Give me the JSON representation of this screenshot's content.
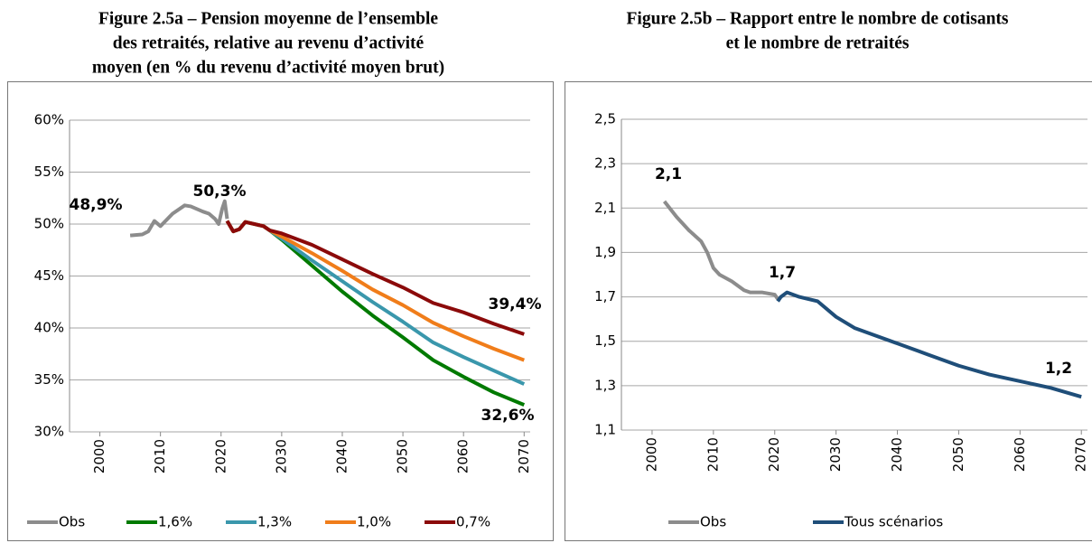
{
  "chart_data": [
    {
      "type": "line",
      "title": [
        "Figure 2.5a – Pension moyenne de l’ensemble",
        "des retraités, relative au revenu d’activité",
        "moyen (en % du revenu d’activité moyen brut)"
      ],
      "xlim": [
        1995,
        2071
      ],
      "xticks": [
        2000,
        2010,
        2020,
        2030,
        2040,
        2050,
        2060,
        2070
      ],
      "ylim": [
        30,
        60
      ],
      "yticks": [
        {
          "value": 30,
          "label": "30%"
        },
        {
          "value": 35,
          "label": "35%"
        },
        {
          "value": 40,
          "label": "40%"
        },
        {
          "value": 45,
          "label": "45%"
        },
        {
          "value": 50,
          "label": "50%"
        },
        {
          "value": 55,
          "label": "55%"
        },
        {
          "value": 60,
          "label": "60%"
        }
      ],
      "grid": true,
      "series": [
        {
          "name": "Obs",
          "color": "#8c8c8c",
          "x": [
            2005,
            2007,
            2008,
            2009,
            2010,
            2012,
            2014,
            2015,
            2017,
            2018,
            2019,
            2019.6,
            2020.2,
            2020.6,
            2021
          ],
          "values": [
            48.9,
            49.0,
            49.3,
            50.3,
            49.8,
            51.0,
            51.8,
            51.7,
            51.2,
            51.0,
            50.5,
            50.0,
            51.5,
            52.2,
            50.5
          ]
        },
        {
          "name": "1,6%",
          "color": "#007a00",
          "x": [
            2021,
            2022,
            2023,
            2024,
            2027,
            2028,
            2030,
            2035,
            2040,
            2045,
            2050,
            2055,
            2060,
            2065,
            2070
          ],
          "values": [
            50.3,
            49.3,
            49.5,
            50.2,
            49.8,
            49.4,
            48.5,
            46.0,
            43.5,
            41.2,
            39.1,
            36.9,
            35.3,
            33.8,
            32.6
          ]
        },
        {
          "name": "1,3%",
          "color": "#3a97ac",
          "x": [
            2021,
            2022,
            2023,
            2024,
            2027,
            2028,
            2030,
            2035,
            2040,
            2045,
            2050,
            2055,
            2060,
            2065,
            2070
          ],
          "values": [
            50.3,
            49.3,
            49.5,
            50.2,
            49.8,
            49.4,
            48.6,
            46.5,
            44.5,
            42.5,
            40.6,
            38.6,
            37.2,
            35.9,
            34.6
          ]
        },
        {
          "name": "1,0%",
          "color": "#f07d1a",
          "x": [
            2021,
            2022,
            2023,
            2024,
            2027,
            2028,
            2030,
            2035,
            2040,
            2045,
            2050,
            2055,
            2060,
            2065,
            2070
          ],
          "values": [
            50.3,
            49.3,
            49.5,
            50.2,
            49.8,
            49.4,
            48.8,
            47.2,
            45.5,
            43.7,
            42.2,
            40.5,
            39.2,
            38.0,
            36.9
          ]
        },
        {
          "name": "0,7%",
          "color": "#8b0a0a",
          "x": [
            2021,
            2022,
            2023,
            2024,
            2027,
            2028,
            2030,
            2035,
            2040,
            2045,
            2050,
            2055,
            2060,
            2065,
            2070
          ],
          "values": [
            50.3,
            49.3,
            49.5,
            50.2,
            49.8,
            49.4,
            49.1,
            48.0,
            46.6,
            45.2,
            43.9,
            42.4,
            41.5,
            40.4,
            39.4
          ]
        }
      ],
      "annotations": [
        {
          "text": "48,9%",
          "color": "#8c8c8c"
        },
        {
          "text": "50,3%",
          "color": "#8c8c8c"
        },
        {
          "text": "39,4%",
          "color": "#8b0a0a"
        },
        {
          "text": "32,6%",
          "color": "#007a00"
        }
      ]
    },
    {
      "type": "line",
      "title": [
        "Figure 2.5b – Rapport entre le nombre de cotisants",
        "et le nombre de retraités"
      ],
      "xlim": [
        1995,
        2071
      ],
      "xticks": [
        2000,
        2010,
        2020,
        2030,
        2040,
        2050,
        2060,
        2070
      ],
      "ylim": [
        1.1,
        2.5
      ],
      "yticks": [
        {
          "value": 1.1,
          "label": "1,1"
        },
        {
          "value": 1.3,
          "label": "1,3"
        },
        {
          "value": 1.5,
          "label": "1,5"
        },
        {
          "value": 1.7,
          "label": "1,7"
        },
        {
          "value": 1.9,
          "label": "1,9"
        },
        {
          "value": 2.1,
          "label": "2,1"
        },
        {
          "value": 2.3,
          "label": "2,3"
        },
        {
          "value": 2.5,
          "label": "2,5"
        }
      ],
      "grid": true,
      "series": [
        {
          "name": "Obs",
          "color": "#8c8c8c",
          "x": [
            2002,
            2004,
            2006,
            2008,
            2009,
            2010,
            2011,
            2013,
            2015,
            2016,
            2018,
            2020,
            2020.5
          ],
          "values": [
            2.13,
            2.06,
            2.0,
            1.95,
            1.9,
            1.83,
            1.8,
            1.77,
            1.73,
            1.72,
            1.72,
            1.71,
            1.69
          ]
        },
        {
          "name": "Tous scénarios",
          "color": "#1f4e79",
          "x": [
            2020.5,
            2021,
            2022,
            2024,
            2027,
            2030,
            2033,
            2036,
            2040,
            2045,
            2050,
            2055,
            2060,
            2065,
            2070
          ],
          "values": [
            1.68,
            1.7,
            1.72,
            1.7,
            1.68,
            1.61,
            1.56,
            1.53,
            1.49,
            1.44,
            1.39,
            1.35,
            1.32,
            1.29,
            1.25
          ]
        }
      ],
      "annotations": [
        {
          "text": "2,1",
          "color": "#8c8c8c"
        },
        {
          "text": "1,7",
          "color": "#8c8c8c"
        },
        {
          "text": "1,2",
          "color": "#1f4e79"
        }
      ]
    }
  ]
}
